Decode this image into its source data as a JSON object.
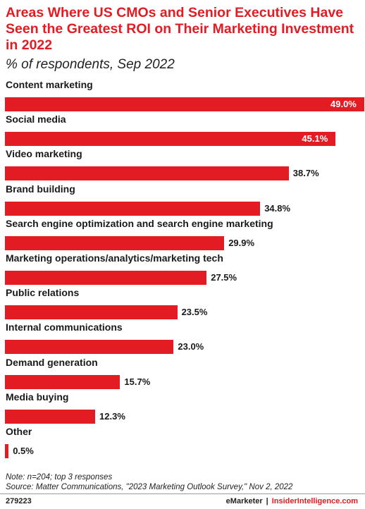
{
  "header": {
    "title": "Areas Where US CMOs and Senior Executives Have Seen the Greatest ROI on Their Marketing Investment in 2022",
    "subtitle": "% of respondents, Sep 2022"
  },
  "chart_data": {
    "type": "bar",
    "orientation": "horizontal",
    "title": "Areas Where US CMOs and Senior Executives Have Seen the Greatest ROI on Their Marketing Investment in 2022",
    "subtitle": "% of respondents, Sep 2022",
    "categories": [
      "Content marketing",
      "Social media",
      "Video marketing",
      "Brand building",
      "Search engine optimization and search engine marketing",
      "Marketing operations/analytics/marketing tech",
      "Public relations",
      "Internal communications",
      "Demand generation",
      "Media buying",
      "Other"
    ],
    "values": [
      49.0,
      45.1,
      38.7,
      34.8,
      29.9,
      27.5,
      23.5,
      23.0,
      15.7,
      12.3,
      0.5
    ],
    "value_labels": [
      "49.0%",
      "45.1%",
      "38.7%",
      "34.8%",
      "29.9%",
      "27.5%",
      "23.5%",
      "23.0%",
      "15.7%",
      "12.3%",
      "0.5%"
    ],
    "xlim": [
      0,
      49.0
    ],
    "grid": false,
    "legend": "none",
    "bar_color": "#e31b23"
  },
  "footer": {
    "note": "Note: n=204; top 3 responses",
    "source": "Source: Matter Communications, \"2023 Marketing Outlook Survey,\" Nov 2, 2022",
    "chart_id": "279223",
    "brand_left": "eMarketer",
    "separator": "|",
    "brand_right": "InsiderIntelligence.com"
  }
}
